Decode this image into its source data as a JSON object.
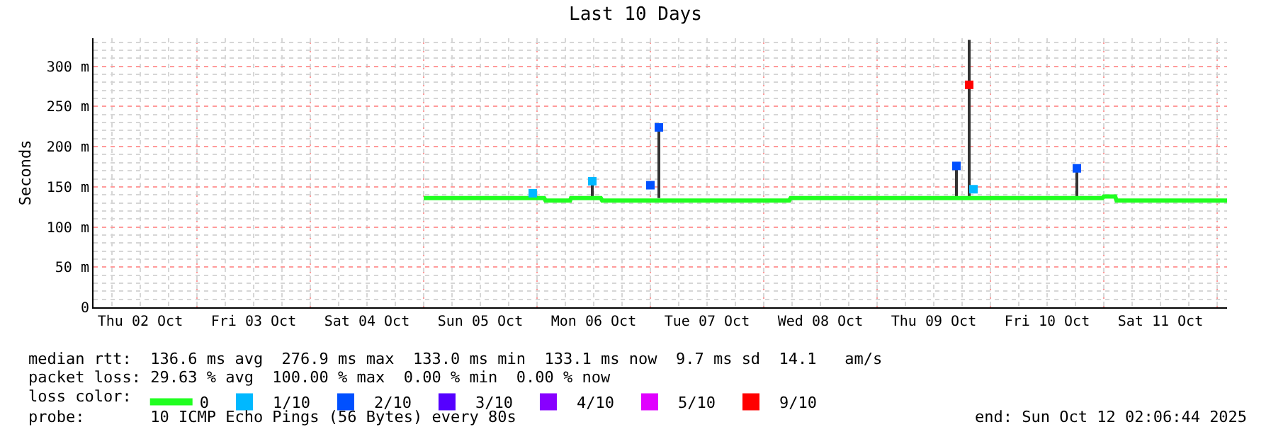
{
  "chart_data": {
    "type": "line",
    "title": "Last 10 Days",
    "ylabel": "Seconds",
    "xlim": [
      "2025-10-02T02:06",
      "2025-10-12T02:06"
    ],
    "xticks": [
      {
        "value": "2025-10-02T12:00",
        "label": "Thu 02 Oct"
      },
      {
        "value": "2025-10-03T12:00",
        "label": "Fri 03 Oct"
      },
      {
        "value": "2025-10-04T12:00",
        "label": "Sat 04 Oct"
      },
      {
        "value": "2025-10-05T12:00",
        "label": "Sun 05 Oct"
      },
      {
        "value": "2025-10-06T12:00",
        "label": "Mon 06 Oct"
      },
      {
        "value": "2025-10-07T12:00",
        "label": "Tue 07 Oct"
      },
      {
        "value": "2025-10-08T12:00",
        "label": "Wed 08 Oct"
      },
      {
        "value": "2025-10-09T12:00",
        "label": "Thu 09 Oct"
      },
      {
        "value": "2025-10-10T12:00",
        "label": "Fri 10 Oct"
      },
      {
        "value": "2025-10-11T12:00",
        "label": "Sat 11 Oct"
      }
    ],
    "ylim": [
      0,
      335
    ],
    "yticks": [
      0,
      {
        "value": 50,
        "label": "50 m"
      },
      {
        "value": 100,
        "label": "100 m"
      },
      {
        "value": 150,
        "label": "150 m"
      },
      {
        "value": 200,
        "label": "200 m"
      },
      {
        "value": 250,
        "label": "250 m"
      },
      {
        "value": 300,
        "label": "300 m"
      }
    ],
    "grid": true,
    "legend": "bottom left",
    "legend_title": "loss color:",
    "series": [
      {
        "color": "#333333",
        "x": [
          "2025-10-06T11:42",
          "2025-10-06T11:42",
          null,
          "2025-10-07T01:48",
          "2025-10-07T01:48",
          null,
          "2025-10-09T16:48",
          "2025-10-09T16:48",
          null,
          "2025-10-09T19:30",
          "2025-10-09T19:30",
          null,
          "2025-10-10T18:18",
          "2025-10-10T18:18"
        ],
        "values": [
          136,
          158,
          null,
          136,
          226,
          null,
          136,
          178,
          null,
          136,
          333,
          null,
          136,
          176
        ]
      },
      {
        "name": "0",
        "color": "#20ff20",
        "x": [
          "2025-10-05T00:00",
          "2025-10-06T01:30",
          "2025-10-06T01:48",
          "2025-10-06T07:00",
          "2025-10-06T07:12",
          "2025-10-06T13:30",
          "2025-10-06T13:48",
          "2025-10-08T05:24",
          "2025-10-08T05:42",
          "2025-10-10T23:42",
          "2025-10-11T00:00",
          "2025-10-11T02:24",
          "2025-10-11T02:42",
          "2025-10-12T02:06"
        ],
        "values": [
          136,
          136,
          133,
          133,
          136,
          136,
          133,
          133,
          136,
          136,
          138,
          138,
          133,
          133
        ]
      },
      {
        "type": "scatter",
        "name": "1/10",
        "color": "#00b8ff",
        "x": [
          "2025-10-05T23:06",
          "2025-10-06T11:42",
          "2025-10-09T20:24"
        ],
        "values": [
          142,
          157,
          147
        ]
      },
      {
        "type": "scatter",
        "name": "2/10",
        "color": "#0050ff",
        "x": [
          "2025-10-07T00:00",
          "2025-10-07T01:48",
          "2025-10-09T16:48",
          "2025-10-10T18:18"
        ],
        "values": [
          152,
          224,
          176,
          173
        ]
      },
      {
        "type": "scatter",
        "name": "3/10",
        "color": "#5500ff",
        "values": [
          null
        ]
      },
      {
        "type": "scatter",
        "name": "4/10",
        "color": "#8800ff",
        "values": [
          null
        ]
      },
      {
        "type": "scatter",
        "name": "5/10",
        "color": "#e000ff",
        "values": [
          null
        ]
      },
      {
        "type": "scatter",
        "name": "9/10",
        "color": "#ff0000",
        "x": [
          "2025-10-09T19:30"
        ],
        "values": [
          277
        ]
      }
    ],
    "annotations": [
      "median rtt:  136.6 ms avg  276.9 ms max  133.0 ms min  133.1 ms now  9.7 ms sd  14.1   am/s",
      "packet loss: 29.63 % avg  100.00 % max  0.00 % min  0.00 % now",
      "probe:       10 ICMP Echo Pings (56 Bytes) every 80s",
      "end: Sun Oct 12 02:06:44 2025"
    ]
  }
}
